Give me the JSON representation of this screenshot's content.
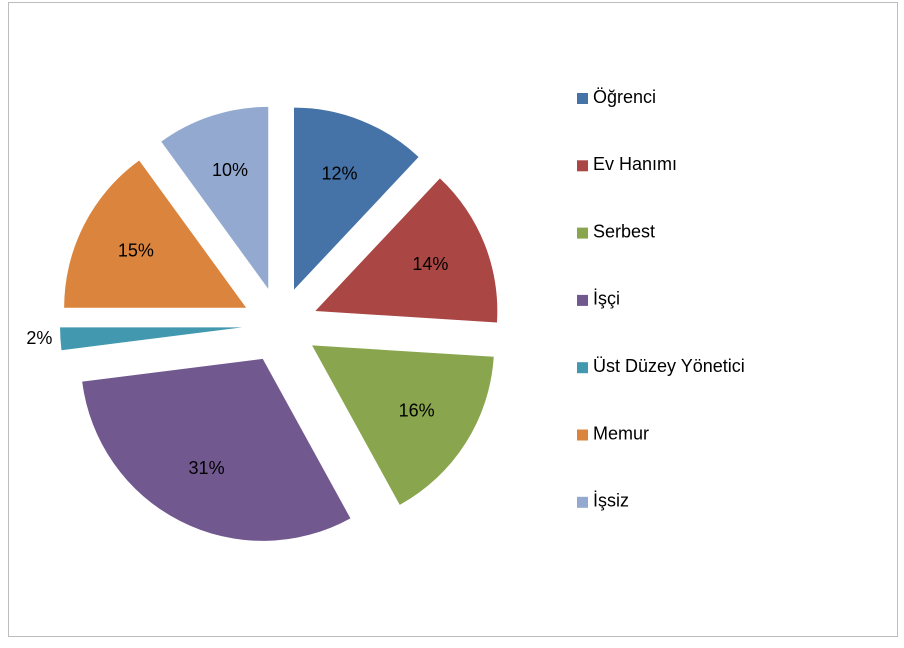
{
  "chart_data": {
    "type": "pie",
    "categories": [
      "Öğrenci",
      "Ev Hanımı",
      "Serbest",
      "İşçi",
      "Üst Düzey Yönetici",
      "Memur",
      "İşsiz"
    ],
    "values": [
      12,
      14,
      16,
      31,
      2,
      15,
      10
    ],
    "value_labels": [
      "12%",
      "14%",
      "16%",
      "31%",
      "2%",
      "15%",
      "10%"
    ],
    "colors": [
      "#4572a7",
      "#aa4643",
      "#89a54e",
      "#71588f",
      "#4198af",
      "#db843d",
      "#93a9cf"
    ],
    "legend": "right"
  }
}
